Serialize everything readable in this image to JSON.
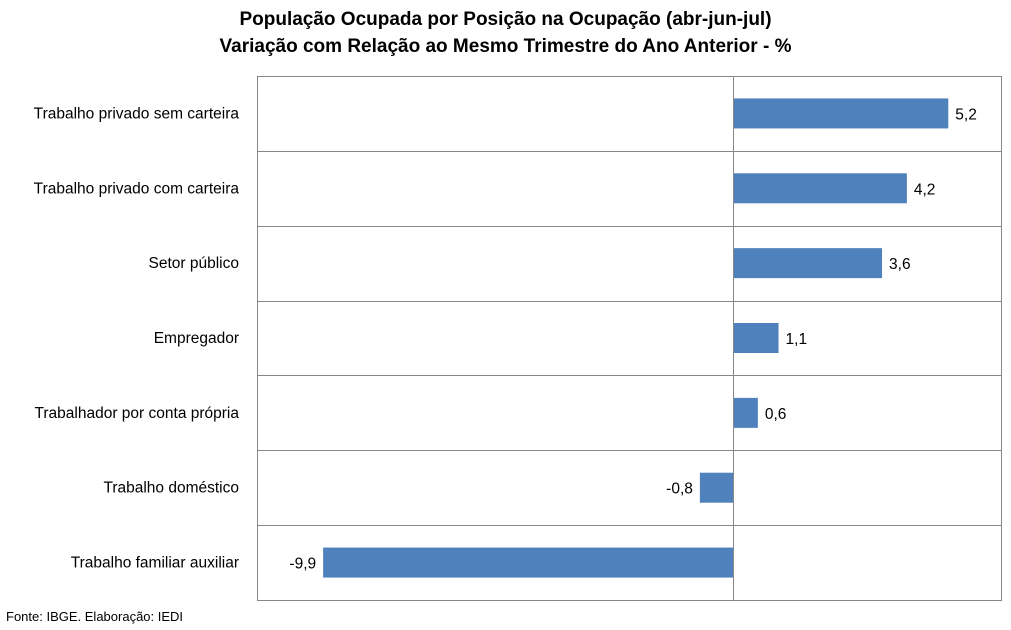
{
  "chart_data": {
    "type": "bar",
    "orientation": "horizontal",
    "title": "População Ocupada por Posição na Ocupação (abr-jun-jul)",
    "subtitle": "Variação com Relação ao Mesmo Trimestre do Ano Anterior - %",
    "categories": [
      "Trabalho privado sem carteira",
      "Trabalho privado com carteira",
      "Setor público",
      "Empregador",
      "Trabalhador por conta própria",
      "Trabalho doméstico",
      "Trabalho familiar auxiliar"
    ],
    "values": [
      5.2,
      4.2,
      3.6,
      1.1,
      0.6,
      -0.8,
      -9.9
    ],
    "value_labels": [
      "5,2",
      "4,2",
      "3,6",
      "1,1",
      "0,6",
      "-0,8",
      "-9,9"
    ],
    "bar_color": "#4f81bd",
    "grid": true,
    "legend": "none"
  },
  "source_note": "Fonte: IBGE. Elaboração: IEDI"
}
